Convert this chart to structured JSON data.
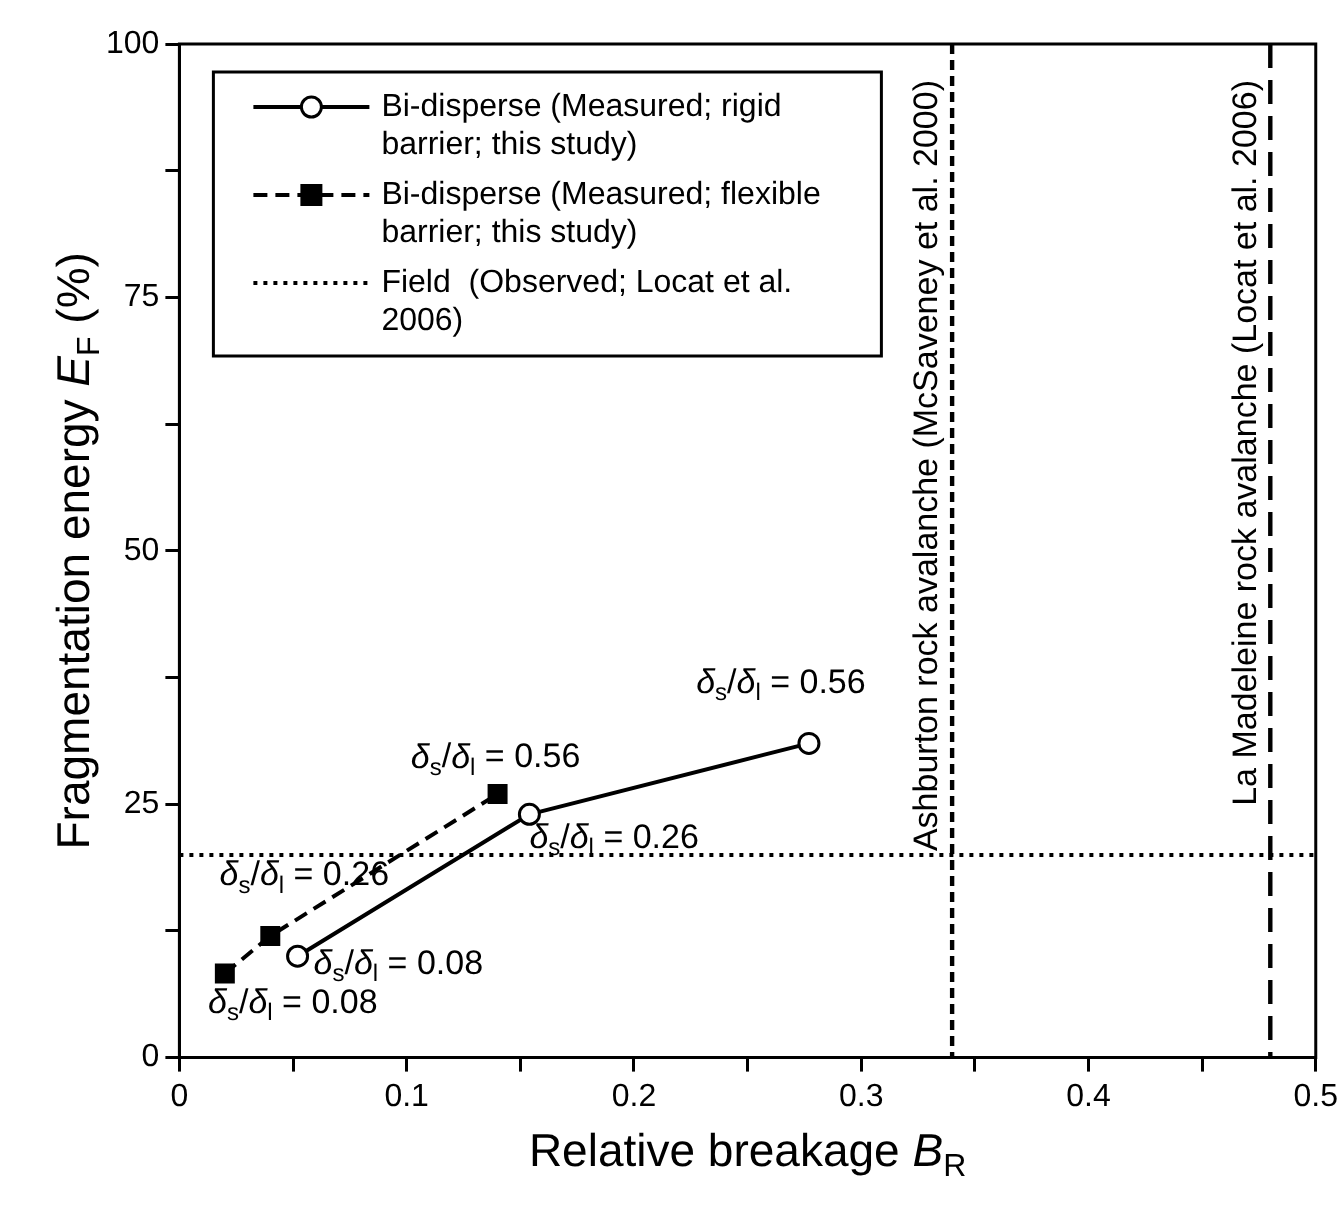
{
  "chart_data": {
    "type": "line",
    "xlabel": "Relative breakage B$_{R}$",
    "ylabel": "Fragmentation energy E$_{F}$ (%)",
    "xlim": [
      0,
      0.5
    ],
    "xticks": [
      0,
      {
        "value": 0.05,
        "label": null
      },
      0.1,
      {
        "value": 0.15,
        "label": null
      },
      0.2,
      {
        "value": 0.25,
        "label": null
      },
      0.3,
      {
        "value": 0.35,
        "label": null
      },
      0.4,
      {
        "value": 0.45,
        "label": null
      },
      0.5
    ],
    "ylim": [
      0,
      100
    ],
    "yticks": [
      0,
      {
        "value": 12.5,
        "label": null
      },
      25,
      {
        "value": 37.5,
        "label": null
      },
      50,
      {
        "value": 62.5,
        "label": null
      },
      75,
      {
        "value": 87.5,
        "label": null
      },
      100
    ],
    "grid": false,
    "legend": "top left",
    "series": [
      {
        "name": "Bi-disperse (Measured; rigid barrier; this study)",
        "color": "#000000",
        "marker": "circle",
        "line_style": "solid",
        "x": [
          0.052,
          0.154,
          0.277
        ],
        "values": [
          10,
          24,
          31
        ]
      },
      {
        "name": "Bi-disperse (Measured; flexible barrier; this study)",
        "color": "#000000",
        "marker": "square",
        "line_style": "dashed",
        "x": [
          0.02,
          0.04,
          0.14
        ],
        "values": [
          8.3,
          12,
          26
        ]
      }
    ],
    "ref_lines": [
      {
        "axis": "y",
        "value": 20,
        "label": "Field  (Observed; Locat et al. 2006)",
        "color": "#000000",
        "line_style": "dotted"
      },
      {
        "axis": "x",
        "value": 0.34,
        "label": "Ashburton rock avalanche (McSaveney et al. 2000)",
        "color": "#000000",
        "line_style": "dashed"
      },
      {
        "axis": "x",
        "value": 0.48,
        "label": "La Madeleine rock avalanche (Locat et al. 2006)",
        "color": "#000000",
        "line_style": "dashed"
      }
    ],
    "annotations": [
      {
        "text": "δ$_{s}$/δ$_{l}$ = 0.08",
        "x": 0.052,
        "y": 10
      },
      {
        "text": "δ$_{s}$/δ$_{l}$ = 0.26",
        "x": 0.154,
        "y": 24
      },
      {
        "text": "δ$_{s}$/δ$_{l}$ = 0.56",
        "x": 0.277,
        "y": 31
      },
      {
        "text": "δ$_{s}$/δ$_{l}$ = 0.08",
        "x": 0.02,
        "y": 8.3
      },
      {
        "text": "δ$_{s}$/δ$_{l}$ = 0.26",
        "x": 0.04,
        "y": 12
      },
      {
        "text": "δ$_{s}$/δ$_{l}$ = 0.56",
        "x": 0.14,
        "y": 26
      }
    ]
  }
}
